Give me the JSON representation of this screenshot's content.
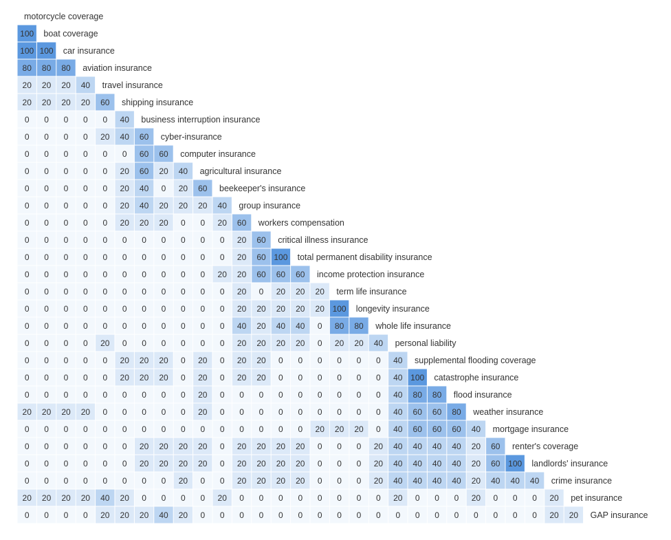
{
  "chart_data": {
    "type": "heatmap",
    "labels": [
      "motorcycle coverage",
      "boat coverage",
      "car insurance",
      "aviation insurance",
      "travel insurance",
      "shipping insurance",
      "business interruption insurance",
      "cyber-insurance",
      "computer insurance",
      "agricultural insurance",
      "beekeeper's insurance",
      "group insurance",
      "workers compensation",
      "critical illness insurance",
      "total permanent disability insurance",
      "income protection insurance",
      "term life insurance",
      "longevity insurance",
      "whole life insurance",
      "personal liability",
      "supplemental flooding coverage",
      "catastrophe insurance",
      "flood insurance",
      "weather insurance",
      "mortgage insurance",
      "renter's coverage",
      "landlords' insurance",
      "crime insurance",
      "pet insurance",
      "GAP insurance"
    ],
    "matrix": [
      [],
      [
        100
      ],
      [
        100,
        100
      ],
      [
        80,
        80,
        80
      ],
      [
        20,
        20,
        20,
        40
      ],
      [
        20,
        20,
        20,
        20,
        60
      ],
      [
        0,
        0,
        0,
        0,
        0,
        40
      ],
      [
        0,
        0,
        0,
        0,
        20,
        40,
        60
      ],
      [
        0,
        0,
        0,
        0,
        0,
        0,
        60,
        60
      ],
      [
        0,
        0,
        0,
        0,
        0,
        20,
        60,
        20,
        40
      ],
      [
        0,
        0,
        0,
        0,
        0,
        20,
        40,
        0,
        20,
        60
      ],
      [
        0,
        0,
        0,
        0,
        0,
        20,
        40,
        20,
        20,
        20,
        40
      ],
      [
        0,
        0,
        0,
        0,
        0,
        20,
        20,
        20,
        0,
        0,
        20,
        60
      ],
      [
        0,
        0,
        0,
        0,
        0,
        0,
        0,
        0,
        0,
        0,
        0,
        20,
        60
      ],
      [
        0,
        0,
        0,
        0,
        0,
        0,
        0,
        0,
        0,
        0,
        0,
        20,
        60,
        100
      ],
      [
        0,
        0,
        0,
        0,
        0,
        0,
        0,
        0,
        0,
        0,
        20,
        20,
        60,
        60,
        60
      ],
      [
        0,
        0,
        0,
        0,
        0,
        0,
        0,
        0,
        0,
        0,
        0,
        20,
        0,
        20,
        20,
        20
      ],
      [
        0,
        0,
        0,
        0,
        0,
        0,
        0,
        0,
        0,
        0,
        0,
        20,
        20,
        20,
        20,
        20,
        100
      ],
      [
        0,
        0,
        0,
        0,
        0,
        0,
        0,
        0,
        0,
        0,
        0,
        40,
        20,
        40,
        40,
        0,
        80,
        80
      ],
      [
        0,
        0,
        0,
        0,
        20,
        0,
        0,
        0,
        0,
        0,
        0,
        20,
        20,
        20,
        20,
        0,
        20,
        20,
        40
      ],
      [
        0,
        0,
        0,
        0,
        0,
        20,
        20,
        20,
        0,
        20,
        0,
        20,
        20,
        0,
        0,
        0,
        0,
        0,
        0,
        40
      ],
      [
        0,
        0,
        0,
        0,
        0,
        20,
        20,
        20,
        0,
        20,
        0,
        20,
        20,
        0,
        0,
        0,
        0,
        0,
        0,
        40,
        100
      ],
      [
        0,
        0,
        0,
        0,
        0,
        0,
        0,
        0,
        0,
        20,
        0,
        0,
        0,
        0,
        0,
        0,
        0,
        0,
        0,
        40,
        80,
        80
      ],
      [
        20,
        20,
        20,
        20,
        0,
        0,
        0,
        0,
        0,
        20,
        0,
        0,
        0,
        0,
        0,
        0,
        0,
        0,
        0,
        40,
        60,
        60,
        80
      ],
      [
        0,
        0,
        0,
        0,
        0,
        0,
        0,
        0,
        0,
        0,
        0,
        0,
        0,
        0,
        0,
        20,
        20,
        20,
        0,
        40,
        60,
        60,
        60,
        40
      ],
      [
        0,
        0,
        0,
        0,
        0,
        0,
        20,
        20,
        20,
        20,
        0,
        20,
        20,
        20,
        20,
        0,
        0,
        0,
        20,
        40,
        40,
        40,
        40,
        20,
        60
      ],
      [
        0,
        0,
        0,
        0,
        0,
        0,
        20,
        20,
        20,
        20,
        0,
        20,
        20,
        20,
        20,
        0,
        0,
        0,
        20,
        40,
        40,
        40,
        40,
        20,
        60,
        100
      ],
      [
        0,
        0,
        0,
        0,
        0,
        0,
        0,
        0,
        20,
        0,
        0,
        20,
        20,
        20,
        20,
        0,
        0,
        0,
        20,
        40,
        40,
        40,
        40,
        20,
        40,
        40,
        40
      ],
      [
        20,
        20,
        20,
        20,
        40,
        20,
        0,
        0,
        0,
        0,
        20,
        0,
        0,
        0,
        0,
        0,
        0,
        0,
        0,
        20,
        0,
        0,
        0,
        20,
        0,
        0,
        0,
        20
      ],
      [
        0,
        0,
        0,
        0,
        20,
        20,
        20,
        40,
        20,
        0,
        0,
        0,
        0,
        0,
        0,
        0,
        0,
        0,
        0,
        0,
        0,
        0,
        0,
        0,
        0,
        0,
        0,
        20,
        20
      ]
    ],
    "value_range": [
      0,
      100
    ],
    "colors": {
      "c0": "#f3f8fd",
      "c20": "#dce9f8",
      "c40": "#bdd6f2",
      "c60": "#9cc1ec",
      "c80": "#79abe6",
      "c100": "#5b98df",
      "text": "#333333"
    }
  }
}
